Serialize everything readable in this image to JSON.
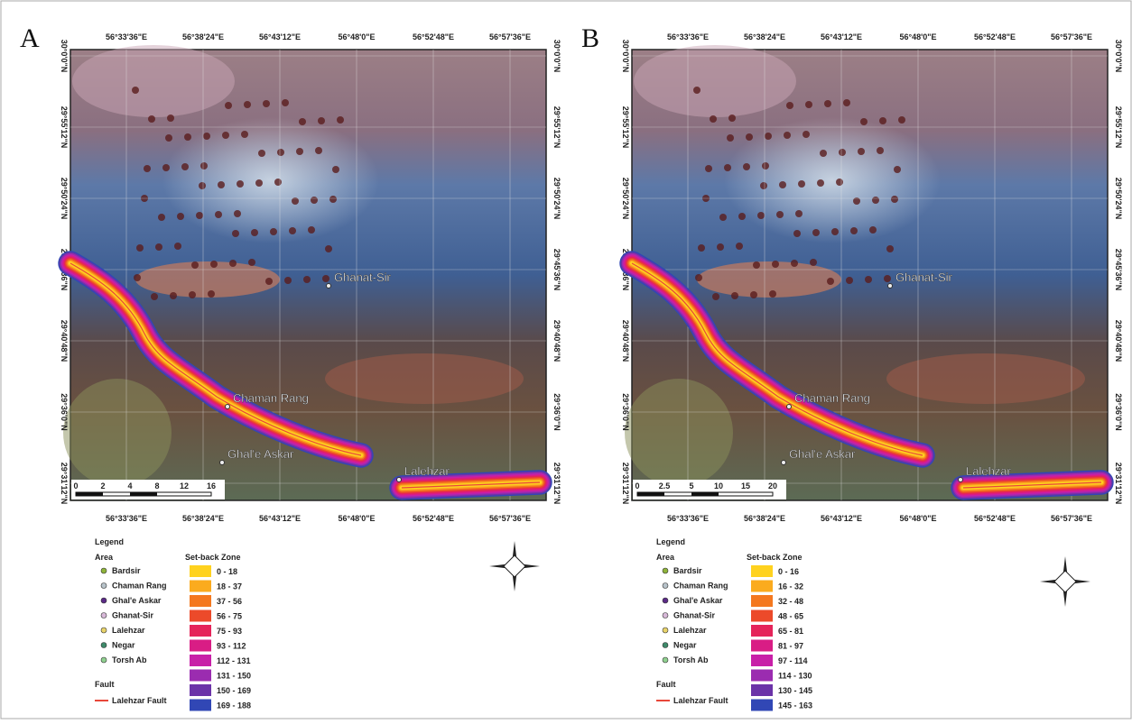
{
  "x_labels": [
    "56°33'36\"E",
    "56°38'24\"E",
    "56°43'12\"E",
    "56°48'0\"E",
    "56°52'48\"E",
    "56°57'36\"E"
  ],
  "y_labels": [
    "30°0'0\"N",
    "29°55'12\"N",
    "29°50'24\"N",
    "29°45'36\"N",
    "29°40'48\"N",
    "29°36'0\"N",
    "29°31'12\"N"
  ],
  "places": [
    "Ghanat-Sir",
    "Chaman Rang",
    "Ghal'e Askar",
    "Lalehzar"
  ],
  "legend": {
    "title": "Legend",
    "area_title": "Area",
    "areas": [
      {
        "name": "Bardsir",
        "color": "#8fb43a"
      },
      {
        "name": "Chaman Rang",
        "color": "#b7c2c9"
      },
      {
        "name": "Ghal'e Askar",
        "color": "#5b2a86"
      },
      {
        "name": "Ghanat-Sir",
        "color": "#d7b8d8"
      },
      {
        "name": "Lalehzar",
        "color": "#e8d36a"
      },
      {
        "name": "Negar",
        "color": "#3e8a6a"
      },
      {
        "name": "Torsh Ab",
        "color": "#8fd08f"
      }
    ],
    "fault_title": "Fault",
    "fault": "Lalehzar Fault",
    "zone_title": "Set-back Zone",
    "zone_colors": [
      "#ffd21f",
      "#fbab1e",
      "#f4781f",
      "#ec4a2a",
      "#e5245a",
      "#d91d85",
      "#c81fa8",
      "#9b2cb0",
      "#6b33a8",
      "#3147b5"
    ]
  },
  "panels": [
    {
      "label": "A",
      "scale": [
        "0",
        "2",
        "4",
        "8",
        "12",
        "16"
      ],
      "zones": [
        "0 - 18",
        "18 - 37",
        "37 - 56",
        "56 - 75",
        "75 - 93",
        "93 - 112",
        "112 - 131",
        "131 - 150",
        "150 - 169",
        "169 - 188"
      ]
    },
    {
      "label": "B",
      "scale": [
        "0",
        "2.5",
        "5",
        "10",
        "15",
        "20"
      ],
      "zones": [
        "0 - 16",
        "16 - 32",
        "32 - 48",
        "48 - 65",
        "65 - 81",
        "81 - 97",
        "97 - 114",
        "114 - 130",
        "130 - 145",
        "145 - 163"
      ]
    }
  ]
}
